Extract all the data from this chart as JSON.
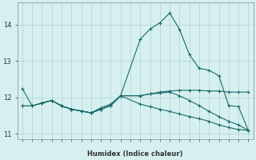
{
  "xlabel": "Humidex (Indice chaleur)",
  "bg_color": "#d6f0f0",
  "grid_color": "#b0d0d0",
  "line_color": "#1a6b6b",
  "xlim": [
    -0.5,
    23.5
  ],
  "ylim": [
    10.85,
    14.6
  ],
  "yticks": [
    11,
    12,
    13,
    14
  ],
  "x_ticks": [
    0,
    1,
    2,
    3,
    4,
    5,
    6,
    7,
    8,
    9,
    10,
    12,
    13,
    14,
    15,
    16,
    17,
    18,
    19,
    20,
    21,
    22,
    23
  ],
  "line1_x": [
    0,
    1,
    2,
    3,
    4,
    5,
    6,
    7,
    8,
    9,
    10,
    12,
    13,
    14,
    15,
    16,
    17,
    18,
    19,
    20,
    21,
    22,
    23
  ],
  "line1_y": [
    12.25,
    11.77,
    11.85,
    11.92,
    11.77,
    11.68,
    11.63,
    11.58,
    11.72,
    11.82,
    12.05,
    13.6,
    13.88,
    14.05,
    14.32,
    13.87,
    13.18,
    12.8,
    12.75,
    12.6,
    11.78,
    11.75,
    11.1
  ],
  "line2_x": [
    0,
    1,
    2,
    3,
    4,
    5,
    6,
    7,
    8,
    9,
    10,
    12,
    13,
    14,
    15,
    16,
    17,
    18,
    19,
    20,
    21,
    22,
    23
  ],
  "line2_y": [
    11.77,
    11.77,
    11.85,
    11.92,
    11.77,
    11.68,
    11.63,
    11.58,
    11.68,
    11.78,
    12.05,
    12.05,
    12.1,
    12.15,
    12.18,
    12.2,
    12.2,
    12.2,
    12.18,
    12.18,
    12.15,
    12.15,
    12.15
  ],
  "line3_x": [
    0,
    1,
    2,
    3,
    4,
    5,
    6,
    7,
    8,
    9,
    10,
    12,
    13,
    14,
    15,
    16,
    17,
    18,
    19,
    20,
    21,
    22,
    23
  ],
  "line3_y": [
    11.77,
    11.77,
    11.85,
    11.92,
    11.77,
    11.68,
    11.63,
    11.58,
    11.68,
    11.78,
    12.05,
    12.05,
    12.1,
    12.12,
    12.15,
    12.05,
    11.92,
    11.78,
    11.62,
    11.48,
    11.35,
    11.25,
    11.1
  ],
  "line4_x": [
    2,
    3,
    4,
    5,
    6,
    7,
    8,
    9,
    10,
    12,
    13,
    14,
    15,
    16,
    17,
    18,
    19,
    20,
    21,
    22,
    23
  ],
  "line4_y": [
    11.85,
    11.92,
    11.77,
    11.68,
    11.63,
    11.58,
    11.68,
    11.78,
    12.05,
    11.82,
    11.75,
    11.68,
    11.62,
    11.55,
    11.48,
    11.42,
    11.35,
    11.25,
    11.18,
    11.12,
    11.1
  ]
}
